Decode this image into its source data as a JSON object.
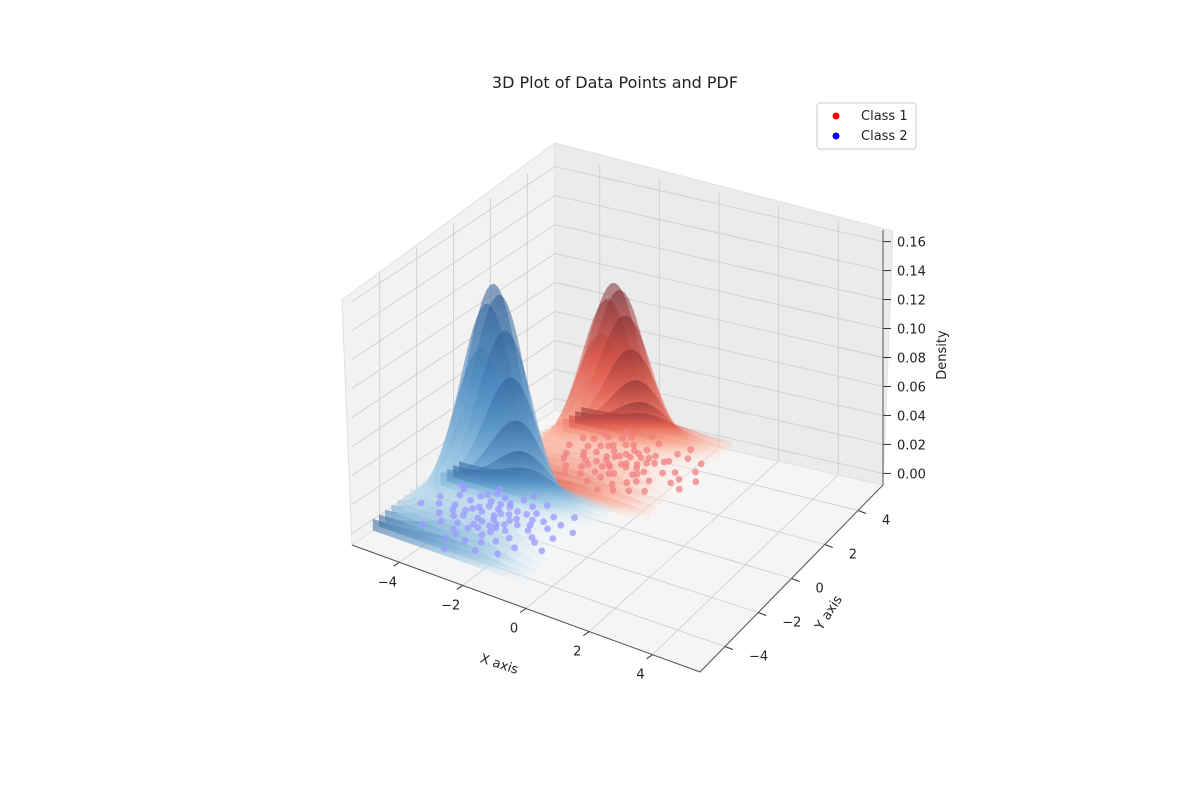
{
  "chart_data": {
    "type": "scatter",
    "subtype": "3d-scatter-with-pdf-surfaces",
    "title": "3D Plot of Data Points and PDF",
    "xlabel": "X axis",
    "ylabel": "Y axis",
    "zlabel": "Density",
    "xlim": [
      -5.5,
      5.5
    ],
    "ylim": [
      -5.5,
      5.5
    ],
    "zlim": [
      -0.008,
      0.168
    ],
    "xticks": [
      "−4",
      "−2",
      "0",
      "2",
      "4"
    ],
    "yticks": [
      "−4",
      "−2",
      "0",
      "2",
      "4"
    ],
    "zticks": [
      "0.00",
      "0.02",
      "0.04",
      "0.06",
      "0.08",
      "0.10",
      "0.12",
      "0.14",
      "0.16"
    ],
    "legend_position": "top-right",
    "grid": true,
    "legend": [
      {
        "label": "Class 1",
        "color": "#ff0000"
      },
      {
        "label": "Class 2",
        "color": "#0000ff"
      }
    ],
    "surfaces": [
      {
        "class": "Class 1",
        "colormap": "Reds",
        "mean": [
          -2,
          3
        ],
        "peak_density": 0.12
      },
      {
        "class": "Class 2",
        "colormap": "Blues",
        "mean": [
          -3,
          -2
        ],
        "peak_density": 0.16
      }
    ],
    "series": [
      {
        "name": "Class 1",
        "color": "#f08080",
        "points": [
          [
            -3.0,
            3.2
          ],
          [
            -2.8,
            2.6
          ],
          [
            -2.5,
            3.5
          ],
          [
            -2.2,
            2.9
          ],
          [
            -1.9,
            3.1
          ],
          [
            -1.6,
            2.7
          ],
          [
            -1.3,
            3.3
          ],
          [
            -2.4,
            2.2
          ],
          [
            -2.1,
            3.8
          ],
          [
            -1.8,
            2.4
          ],
          [
            -2.6,
            3.0
          ],
          [
            -2.3,
            2.5
          ],
          [
            -2.0,
            3.0
          ],
          [
            -1.7,
            3.6
          ],
          [
            -1.5,
            2.8
          ],
          [
            -2.9,
            2.8
          ],
          [
            -2.7,
            3.4
          ],
          [
            -2.2,
            3.3
          ],
          [
            -1.9,
            2.5
          ],
          [
            -1.6,
            3.2
          ],
          [
            -1.2,
            2.9
          ],
          [
            -1.0,
            3.1
          ],
          [
            -0.8,
            2.6
          ],
          [
            -0.6,
            3.4
          ],
          [
            -0.3,
            2.8
          ],
          [
            -2.5,
            2.0
          ],
          [
            -2.0,
            1.9
          ],
          [
            -1.5,
            2.1
          ],
          [
            -1.0,
            2.3
          ],
          [
            -0.7,
            2.0
          ],
          [
            -3.3,
            2.5
          ],
          [
            -3.1,
            3.7
          ],
          [
            -2.8,
            4.0
          ],
          [
            -2.4,
            4.1
          ],
          [
            -1.9,
            3.9
          ],
          [
            -1.4,
            3.8
          ],
          [
            -1.0,
            3.6
          ],
          [
            -0.5,
            3.5
          ],
          [
            0.0,
            3.0
          ],
          [
            0.3,
            2.7
          ],
          [
            -2.3,
            1.6
          ],
          [
            -1.7,
            1.7
          ],
          [
            -1.2,
            1.5
          ],
          [
            -0.9,
            1.8
          ],
          [
            -0.4,
            2.2
          ],
          [
            -2.1,
            2.7
          ],
          [
            -1.8,
            3.3
          ],
          [
            -1.4,
            2.6
          ],
          [
            -1.1,
            3.4
          ],
          [
            -0.9,
            2.4
          ],
          [
            -2.6,
            2.4
          ],
          [
            -2.4,
            3.6
          ],
          [
            -2.0,
            2.3
          ],
          [
            -1.5,
            3.5
          ],
          [
            -1.1,
            2.7
          ],
          [
            -3.5,
            3.0
          ],
          [
            -3.2,
            2.2
          ],
          [
            0.5,
            3.3
          ],
          [
            0.6,
            2.2
          ],
          [
            -0.2,
            1.6
          ],
          [
            -1.3,
            4.3
          ],
          [
            -2.9,
            1.8
          ],
          [
            -0.5,
            4.0
          ],
          [
            -1.6,
            2.0
          ],
          [
            -2.2,
            4.3
          ],
          [
            -0.1,
            3.9
          ],
          [
            -0.8,
            3.2
          ],
          [
            -1.0,
            1.2
          ],
          [
            -2.7,
            1.4
          ],
          [
            0.2,
            2.4
          ],
          [
            -1.9,
            1.3
          ],
          [
            -3.0,
            4.1
          ],
          [
            -1.4,
            1.0
          ],
          [
            -0.6,
            1.4
          ],
          [
            0.8,
            2.8
          ],
          [
            -2.5,
            4.5
          ],
          [
            -1.7,
            4.6
          ],
          [
            -3.4,
            3.6
          ],
          [
            -0.3,
            4.4
          ],
          [
            0.4,
            3.8
          ]
        ]
      },
      {
        "name": "Class 2",
        "color": "#9999ff",
        "points": [
          [
            -3.0,
            -2.0
          ],
          [
            -2.7,
            -1.7
          ],
          [
            -3.3,
            -2.4
          ],
          [
            -2.5,
            -2.3
          ],
          [
            -3.6,
            -1.8
          ],
          [
            -2.9,
            -1.3
          ],
          [
            -3.2,
            -2.8
          ],
          [
            -2.4,
            -1.8
          ],
          [
            -3.8,
            -2.2
          ],
          [
            -2.8,
            -2.6
          ],
          [
            -3.1,
            -1.6
          ],
          [
            -2.6,
            -2.9
          ],
          [
            -3.5,
            -1.3
          ],
          [
            -2.2,
            -2.1
          ],
          [
            -3.9,
            -2.7
          ],
          [
            -2.9,
            -2.2
          ],
          [
            -3.4,
            -2.0
          ],
          [
            -2.6,
            -1.4
          ],
          [
            -3.7,
            -2.5
          ],
          [
            -2.3,
            -2.6
          ],
          [
            -3.0,
            -1.1
          ],
          [
            -2.0,
            -1.6
          ],
          [
            -4.0,
            -1.6
          ],
          [
            -3.2,
            -3.1
          ],
          [
            -2.7,
            -3.2
          ],
          [
            -1.8,
            -2.2
          ],
          [
            -4.2,
            -2.1
          ],
          [
            -3.6,
            -3.0
          ],
          [
            -2.1,
            -1.2
          ],
          [
            -3.3,
            -0.9
          ],
          [
            -2.4,
            -0.9
          ],
          [
            -1.7,
            -1.5
          ],
          [
            -4.3,
            -2.8
          ],
          [
            -3.9,
            -1.2
          ],
          [
            -2.0,
            -2.9
          ],
          [
            -1.5,
            -2.5
          ],
          [
            -4.4,
            -1.5
          ],
          [
            -3.5,
            -3.4
          ],
          [
            -2.8,
            -0.7
          ],
          [
            -1.6,
            -1.1
          ],
          [
            -2.5,
            -2.0
          ],
          [
            -3.1,
            -2.5
          ],
          [
            -2.7,
            -2.4
          ],
          [
            -3.4,
            -1.6
          ],
          [
            -2.3,
            -1.4
          ],
          [
            -3.7,
            -2.0
          ],
          [
            -2.9,
            -1.8
          ],
          [
            -3.2,
            -1.3
          ],
          [
            -2.6,
            -2.6
          ],
          [
            -3.0,
            -2.9
          ],
          [
            -1.9,
            -1.9
          ],
          [
            -4.1,
            -2.4
          ],
          [
            -3.8,
            -1.0
          ],
          [
            -2.2,
            -3.3
          ],
          [
            -1.4,
            -1.8
          ],
          [
            -4.6,
            -2.3
          ],
          [
            -2.5,
            -3.6
          ],
          [
            -3.6,
            -0.8
          ],
          [
            -1.3,
            -2.7
          ],
          [
            -2.1,
            -0.6
          ],
          [
            -4.5,
            -1.1
          ],
          [
            -3.3,
            -3.6
          ],
          [
            -1.2,
            -1.4
          ],
          [
            -4.0,
            -3.2
          ],
          [
            -2.9,
            -3.8
          ],
          [
            -1.0,
            -2.2
          ],
          [
            -3.7,
            -0.5
          ],
          [
            -4.8,
            -1.9
          ],
          [
            -1.6,
            -3.3
          ],
          [
            -2.4,
            -4.1
          ],
          [
            -5.0,
            -2.6
          ],
          [
            -1.1,
            -0.8
          ],
          [
            -3.4,
            -4.0
          ],
          [
            -0.9,
            -3.0
          ],
          [
            -4.7,
            -0.9
          ],
          [
            -2.7,
            -0.3
          ],
          [
            -1.8,
            -3.9
          ],
          [
            -0.7,
            -1.6
          ],
          [
            -4.3,
            -3.7
          ],
          [
            -3.1,
            -4.6
          ]
        ]
      }
    ]
  }
}
